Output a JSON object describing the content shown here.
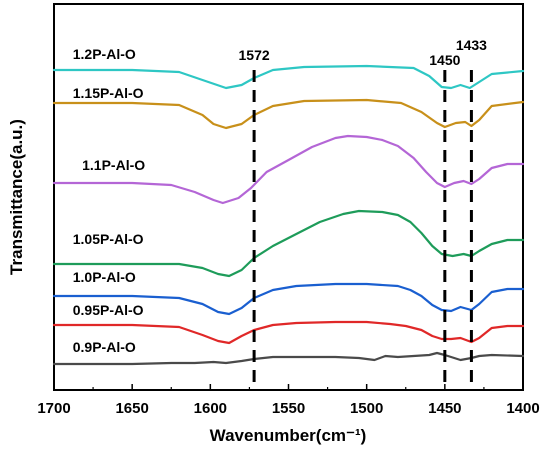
{
  "chart_data": {
    "type": "line",
    "title": "",
    "xlabel": "Wavenumber(cm⁻¹)",
    "ylabel": "Transmittance(a.u.)",
    "xlim": [
      1700,
      1400
    ],
    "x_reversed": true,
    "x_ticks": [
      1700,
      1650,
      1600,
      1550,
      1500,
      1450,
      1400
    ],
    "x_tick_labels": [
      "1700",
      "1650",
      "1600",
      "1550",
      "1500",
      "1450",
      "1400"
    ],
    "y_ticks_shown": false,
    "grid": false,
    "vlines": [
      {
        "x": 1572,
        "label": "1572",
        "style": "dashed"
      },
      {
        "x": 1450,
        "label": "1450",
        "style": "dashed"
      },
      {
        "x": 1433,
        "label": "1433",
        "style": "dashed"
      }
    ],
    "series": [
      {
        "name": "1.2P-Al-O",
        "color": "#2ec7c4",
        "points": [
          [
            1700,
            70
          ],
          [
            1650,
            70
          ],
          [
            1620,
            72
          ],
          [
            1605,
            80
          ],
          [
            1590,
            88
          ],
          [
            1580,
            85
          ],
          [
            1572,
            78
          ],
          [
            1560,
            70
          ],
          [
            1540,
            67
          ],
          [
            1500,
            66
          ],
          [
            1470,
            68
          ],
          [
            1460,
            76
          ],
          [
            1452,
            87
          ],
          [
            1446,
            88
          ],
          [
            1440,
            85
          ],
          [
            1434,
            88
          ],
          [
            1428,
            82
          ],
          [
            1420,
            74
          ],
          [
            1400,
            71
          ]
        ]
      },
      {
        "name": "1.15P-Al-O",
        "color": "#c8901a",
        "points": [
          [
            1700,
            103
          ],
          [
            1650,
            103
          ],
          [
            1620,
            105
          ],
          [
            1605,
            115
          ],
          [
            1598,
            124
          ],
          [
            1590,
            128
          ],
          [
            1580,
            124
          ],
          [
            1572,
            115
          ],
          [
            1560,
            106
          ],
          [
            1540,
            101
          ],
          [
            1500,
            100
          ],
          [
            1478,
            103
          ],
          [
            1465,
            112
          ],
          [
            1455,
            123
          ],
          [
            1450,
            127
          ],
          [
            1443,
            123
          ],
          [
            1437,
            122
          ],
          [
            1433,
            126
          ],
          [
            1428,
            120
          ],
          [
            1420,
            106
          ],
          [
            1400,
            102
          ]
        ]
      },
      {
        "name": "1.1P-Al-O",
        "color": "#b466d6",
        "points": [
          [
            1700,
            183
          ],
          [
            1650,
            183
          ],
          [
            1625,
            185
          ],
          [
            1610,
            192
          ],
          [
            1598,
            200
          ],
          [
            1592,
            203
          ],
          [
            1582,
            198
          ],
          [
            1574,
            188
          ],
          [
            1564,
            172
          ],
          [
            1550,
            160
          ],
          [
            1535,
            147
          ],
          [
            1520,
            138
          ],
          [
            1512,
            136
          ],
          [
            1500,
            137
          ],
          [
            1490,
            140
          ],
          [
            1480,
            146
          ],
          [
            1470,
            158
          ],
          [
            1462,
            172
          ],
          [
            1455,
            183
          ],
          [
            1450,
            187
          ],
          [
            1444,
            183
          ],
          [
            1438,
            181
          ],
          [
            1433,
            184
          ],
          [
            1428,
            179
          ],
          [
            1420,
            168
          ],
          [
            1410,
            164
          ],
          [
            1400,
            164
          ]
        ]
      },
      {
        "name": "1.05P-Al-O",
        "color": "#1e9c5a",
        "points": [
          [
            1700,
            264
          ],
          [
            1650,
            264
          ],
          [
            1620,
            264
          ],
          [
            1605,
            268
          ],
          [
            1595,
            274
          ],
          [
            1588,
            276
          ],
          [
            1580,
            270
          ],
          [
            1572,
            258
          ],
          [
            1560,
            246
          ],
          [
            1545,
            234
          ],
          [
            1530,
            222
          ],
          [
            1515,
            214
          ],
          [
            1505,
            211
          ],
          [
            1490,
            212
          ],
          [
            1480,
            215
          ],
          [
            1472,
            222
          ],
          [
            1465,
            233
          ],
          [
            1458,
            246
          ],
          [
            1452,
            254
          ],
          [
            1445,
            256
          ],
          [
            1438,
            254
          ],
          [
            1433,
            256
          ],
          [
            1428,
            251
          ],
          [
            1420,
            244
          ],
          [
            1410,
            240
          ],
          [
            1400,
            240
          ]
        ]
      },
      {
        "name": "1.0P-Al-O",
        "color": "#1a5fd0",
        "points": [
          [
            1700,
            296
          ],
          [
            1650,
            296
          ],
          [
            1620,
            298
          ],
          [
            1605,
            304
          ],
          [
            1595,
            312
          ],
          [
            1588,
            314
          ],
          [
            1580,
            308
          ],
          [
            1572,
            298
          ],
          [
            1560,
            290
          ],
          [
            1545,
            286
          ],
          [
            1520,
            284
          ],
          [
            1500,
            284
          ],
          [
            1480,
            286
          ],
          [
            1472,
            290
          ],
          [
            1465,
            296
          ],
          [
            1458,
            305
          ],
          [
            1452,
            310
          ],
          [
            1446,
            311
          ],
          [
            1440,
            307
          ],
          [
            1433,
            310
          ],
          [
            1428,
            304
          ],
          [
            1420,
            292
          ],
          [
            1410,
            289
          ],
          [
            1400,
            289
          ]
        ]
      },
      {
        "name": "0.95P-Al-O",
        "color": "#e02828",
        "points": [
          [
            1700,
            325
          ],
          [
            1650,
            325
          ],
          [
            1620,
            327
          ],
          [
            1605,
            335
          ],
          [
            1595,
            341
          ],
          [
            1588,
            343
          ],
          [
            1580,
            336
          ],
          [
            1572,
            330
          ],
          [
            1560,
            325
          ],
          [
            1545,
            323
          ],
          [
            1520,
            322
          ],
          [
            1500,
            322
          ],
          [
            1485,
            324
          ],
          [
            1475,
            326
          ],
          [
            1465,
            330
          ],
          [
            1458,
            336
          ],
          [
            1452,
            339
          ],
          [
            1446,
            339
          ],
          [
            1440,
            338
          ],
          [
            1433,
            342
          ],
          [
            1428,
            338
          ],
          [
            1420,
            328
          ],
          [
            1410,
            326
          ],
          [
            1400,
            326
          ]
        ]
      },
      {
        "name": "0.9P-Al-O",
        "color": "#4a4a4a",
        "points": [
          [
            1700,
            364
          ],
          [
            1650,
            364
          ],
          [
            1625,
            363
          ],
          [
            1610,
            363
          ],
          [
            1598,
            362
          ],
          [
            1590,
            363
          ],
          [
            1580,
            361
          ],
          [
            1572,
            359
          ],
          [
            1560,
            357
          ],
          [
            1545,
            357
          ],
          [
            1520,
            357
          ],
          [
            1505,
            358
          ],
          [
            1495,
            360
          ],
          [
            1488,
            356
          ],
          [
            1480,
            357
          ],
          [
            1470,
            356
          ],
          [
            1460,
            355
          ],
          [
            1455,
            353
          ],
          [
            1450,
            355
          ],
          [
            1446,
            357
          ],
          [
            1440,
            360
          ],
          [
            1433,
            358
          ],
          [
            1428,
            356
          ],
          [
            1420,
            355
          ],
          [
            1400,
            356
          ]
        ]
      }
    ]
  }
}
